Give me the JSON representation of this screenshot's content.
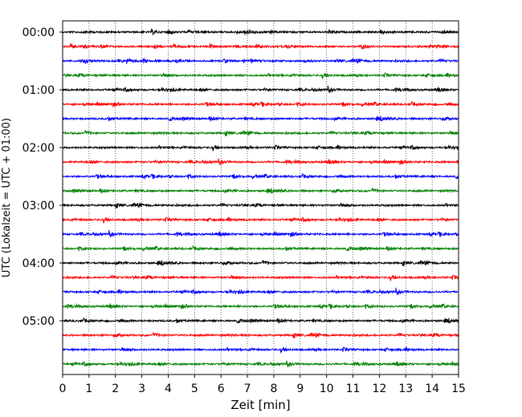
{
  "chart_data": {
    "type": "line",
    "title": "",
    "xlabel": "Zeit  [min]",
    "ylabel": "UTC (Lokalzeit = UTC + 01:00)",
    "xlim": [
      0,
      15
    ],
    "xticks": [
      "0",
      "1",
      "2",
      "3",
      "4",
      "5",
      "6",
      "7",
      "8",
      "9",
      "10",
      "11",
      "12",
      "13",
      "14",
      "15"
    ],
    "yticks": [
      "00:00",
      "01:00",
      "02:00",
      "03:00",
      "04:00",
      "05:00"
    ],
    "ylim_hours_utc": [
      0,
      6
    ],
    "trace_interval_minutes": 15,
    "trace_count": 24,
    "trace_colors": [
      "#000000",
      "#ff0000",
      "#0000ff",
      "#008000"
    ],
    "grid": "vertical-dotted",
    "series": [
      {
        "start_utc": "00:00"
      },
      {
        "start_utc": "00:15"
      },
      {
        "start_utc": "00:30"
      },
      {
        "start_utc": "00:45"
      },
      {
        "start_utc": "01:00"
      },
      {
        "start_utc": "01:15"
      },
      {
        "start_utc": "01:30"
      },
      {
        "start_utc": "01:45"
      },
      {
        "start_utc": "02:00"
      },
      {
        "start_utc": "02:15"
      },
      {
        "start_utc": "02:30"
      },
      {
        "start_utc": "02:45"
      },
      {
        "start_utc": "03:00"
      },
      {
        "start_utc": "03:15"
      },
      {
        "start_utc": "03:30"
      },
      {
        "start_utc": "03:45"
      },
      {
        "start_utc": "04:00"
      },
      {
        "start_utc": "04:15"
      },
      {
        "start_utc": "04:30"
      },
      {
        "start_utc": "04:45"
      },
      {
        "start_utc": "05:00"
      },
      {
        "start_utc": "05:15"
      },
      {
        "start_utc": "05:30"
      },
      {
        "start_utc": "05:45"
      }
    ]
  }
}
